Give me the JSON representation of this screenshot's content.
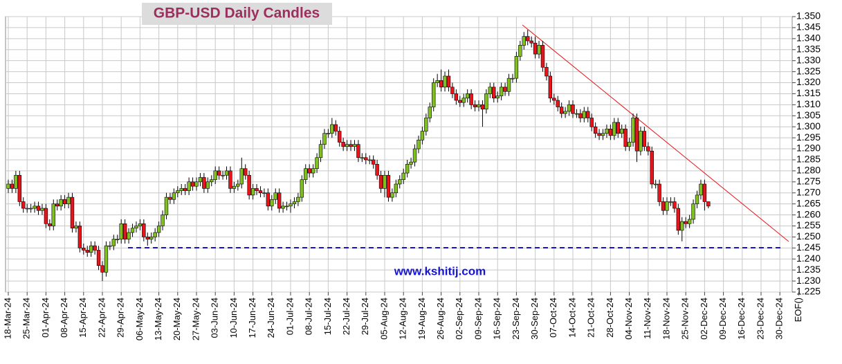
{
  "chart_data": {
    "type": "candlestick",
    "title": "GBP-USD Daily Candles",
    "watermark": "www.kshitij.com",
    "up_color": "#7fbf1f",
    "down_color": "#e8141b",
    "grid": true,
    "ylim": [
      1.225,
      1.35
    ],
    "yticks": [
      {
        "value": 1.35,
        "label": "1.350"
      },
      1.345,
      {
        "value": 1.34,
        "label": "1.340"
      },
      1.335,
      {
        "value": 1.33,
        "label": "1.330"
      },
      1.325,
      {
        "value": 1.32,
        "label": "1.320"
      },
      1.315,
      {
        "value": 1.31,
        "label": "1.310"
      },
      1.305,
      {
        "value": 1.3,
        "label": "1.300"
      },
      1.295,
      {
        "value": 1.29,
        "label": "1.290"
      },
      1.285,
      {
        "value": 1.28,
        "label": "1.280"
      },
      1.275,
      {
        "value": 1.27,
        "label": "1.270"
      },
      1.265,
      {
        "value": 1.26,
        "label": "1.260"
      },
      1.255,
      {
        "value": 1.25,
        "label": "1.250"
      },
      1.245,
      {
        "value": 1.24,
        "label": "1.240"
      },
      1.235,
      {
        "value": 1.23,
        "label": "1.230"
      },
      1.225
    ],
    "x_labels": [
      "18-Mar-24",
      "25-Mar-24",
      "01-Apr-24",
      "08-Apr-24",
      "15-Apr-24",
      "22-Apr-24",
      "29-Apr-24",
      "06-May-24",
      "13-May-24",
      "20-May-24",
      "27-May-24",
      "03-Jun-24",
      "10-Jun-24",
      "17-Jun-24",
      "24-Jun-24",
      "01-Jul-24",
      "08-Jul-24",
      "15-Jul-24",
      "22-Jul-24",
      "29-Jul-24",
      "05-Aug-24",
      "12-Aug-24",
      "19-Aug-24",
      "26-Aug-24",
      "02-Sep-24",
      "09-Sep-24",
      "16-Sep-24",
      "23-Sep-24",
      "30-Sep-24",
      "07-Oct-24",
      "14-Oct-24",
      "21-Oct-24",
      "28-Oct-24",
      "04-Nov-24",
      "11-Nov-24",
      "18-Nov-24",
      "25-Nov-24",
      "02-Dec-24",
      "09-Dec-24",
      "16-Dec-24",
      "23-Dec-24",
      "30-Dec-24",
      "EOF()"
    ],
    "open": [
      1.272,
      1.274,
      1.272,
      1.278,
      1.266,
      1.263,
      1.263,
      1.263,
      1.264,
      1.262,
      1.263,
      1.256,
      1.255,
      1.265,
      1.264,
      1.267,
      1.265,
      1.268,
      1.254,
      1.255,
      1.245,
      1.244,
      1.243,
      1.246,
      1.244,
      1.237,
      1.234,
      1.246,
      1.246,
      1.249,
      1.249,
      1.256,
      1.249,
      1.252,
      1.254,
      1.255,
      1.256,
      1.25,
      1.249,
      1.25,
      1.252,
      1.255,
      1.26,
      1.268,
      1.267,
      1.27,
      1.271,
      1.272,
      1.271,
      1.275,
      1.273,
      1.275,
      1.277,
      1.272,
      1.275,
      1.276,
      1.28,
      1.278,
      1.278,
      1.28,
      1.272,
      1.273,
      1.274,
      1.281,
      1.278,
      1.269,
      1.272,
      1.271,
      1.27,
      1.27,
      1.264,
      1.267,
      1.27,
      1.263,
      1.264,
      1.264,
      1.265,
      1.266,
      1.268,
      1.276,
      1.281,
      1.279,
      1.281,
      1.286,
      1.292,
      1.297,
      1.297,
      1.301,
      1.298,
      1.293,
      1.291,
      1.292,
      1.291,
      1.292,
      1.286,
      1.286,
      1.285,
      1.285,
      1.283,
      1.278,
      1.272,
      1.278,
      1.268,
      1.27,
      1.274,
      1.276,
      1.279,
      1.283,
      1.284,
      1.29,
      1.294,
      1.298,
      1.304,
      1.309,
      1.32,
      1.321,
      1.318,
      1.323,
      1.318,
      1.315,
      1.312,
      1.311,
      1.313,
      1.315,
      1.31,
      1.309,
      1.31,
      1.308,
      1.315,
      1.318,
      1.313,
      1.314,
      1.318,
      1.316,
      1.322,
      1.322,
      1.332,
      1.337,
      1.341,
      1.339,
      1.338,
      1.333,
      1.337,
      1.327,
      1.323,
      1.313,
      1.312,
      1.309,
      1.306,
      1.307,
      1.31,
      1.306,
      1.306,
      1.304,
      1.307,
      1.304,
      1.3,
      1.297,
      1.296,
      1.297,
      1.299,
      1.296,
      1.302,
      1.297,
      1.299,
      1.291,
      1.293,
      1.304,
      1.289,
      1.298,
      1.291,
      1.289,
      1.274,
      1.274,
      1.266,
      1.262,
      1.266,
      1.266,
      1.263,
      1.253,
      1.257,
      1.256,
      1.258,
      1.265,
      1.269,
      1.274,
      1.266
    ],
    "high": [
      1.276,
      1.276,
      1.28,
      1.28,
      1.268,
      1.265,
      1.265,
      1.266,
      1.266,
      1.265,
      1.265,
      1.258,
      1.267,
      1.267,
      1.269,
      1.269,
      1.27,
      1.27,
      1.257,
      1.257,
      1.247,
      1.246,
      1.248,
      1.248,
      1.246,
      1.239,
      1.248,
      1.248,
      1.251,
      1.251,
      1.258,
      1.258,
      1.254,
      1.256,
      1.257,
      1.258,
      1.258,
      1.252,
      1.252,
      1.254,
      1.257,
      1.262,
      1.27,
      1.27,
      1.272,
      1.273,
      1.274,
      1.274,
      1.277,
      1.277,
      1.277,
      1.279,
      1.279,
      1.277,
      1.278,
      1.282,
      1.282,
      1.28,
      1.282,
      1.282,
      1.275,
      1.276,
      1.286,
      1.283,
      1.28,
      1.274,
      1.274,
      1.273,
      1.272,
      1.272,
      1.269,
      1.272,
      1.272,
      1.266,
      1.266,
      1.267,
      1.268,
      1.27,
      1.278,
      1.283,
      1.283,
      1.283,
      1.288,
      1.294,
      1.299,
      1.299,
      1.304,
      1.303,
      1.3,
      1.295,
      1.294,
      1.294,
      1.294,
      1.294,
      1.288,
      1.288,
      1.287,
      1.287,
      1.285,
      1.28,
      1.28,
      1.28,
      1.272,
      1.276,
      1.278,
      1.281,
      1.285,
      1.286,
      1.292,
      1.296,
      1.3,
      1.306,
      1.311,
      1.322,
      1.324,
      1.326,
      1.325,
      1.326,
      1.32,
      1.317,
      1.314,
      1.315,
      1.317,
      1.317,
      1.312,
      1.312,
      1.312,
      1.317,
      1.32,
      1.32,
      1.316,
      1.32,
      1.32,
      1.324,
      1.324,
      1.334,
      1.339,
      1.343,
      1.344,
      1.341,
      1.341,
      1.339,
      1.339,
      1.329,
      1.325,
      1.315,
      1.314,
      1.311,
      1.309,
      1.312,
      1.312,
      1.308,
      1.308,
      1.309,
      1.309,
      1.306,
      1.302,
      1.299,
      1.299,
      1.301,
      1.301,
      1.304,
      1.304,
      1.301,
      1.301,
      1.295,
      1.306,
      1.306,
      1.3,
      1.3,
      1.293,
      1.291,
      1.276,
      1.276,
      1.268,
      1.268,
      1.268,
      1.268,
      1.265,
      1.259,
      1.259,
      1.26,
      1.267,
      1.271,
      1.276,
      1.276,
      1.266
    ],
    "low": [
      1.27,
      1.27,
      1.27,
      1.264,
      1.261,
      1.261,
      1.261,
      1.261,
      1.26,
      1.26,
      1.254,
      1.253,
      1.253,
      1.262,
      1.262,
      1.263,
      1.263,
      1.252,
      1.252,
      1.243,
      1.242,
      1.241,
      1.241,
      1.242,
      1.235,
      1.23,
      1.232,
      1.244,
      1.244,
      1.247,
      1.247,
      1.247,
      1.247,
      1.25,
      1.252,
      1.253,
      1.248,
      1.246,
      1.247,
      1.248,
      1.25,
      1.253,
      1.258,
      1.265,
      1.265,
      1.268,
      1.269,
      1.269,
      1.269,
      1.271,
      1.271,
      1.273,
      1.27,
      1.27,
      1.273,
      1.274,
      1.276,
      1.276,
      1.276,
      1.27,
      1.27,
      1.271,
      1.272,
      1.276,
      1.267,
      1.267,
      1.269,
      1.268,
      1.268,
      1.262,
      1.262,
      1.265,
      1.261,
      1.261,
      1.262,
      1.261,
      1.263,
      1.264,
      1.266,
      1.274,
      1.277,
      1.277,
      1.279,
      1.284,
      1.29,
      1.295,
      1.295,
      1.296,
      1.291,
      1.289,
      1.289,
      1.289,
      1.289,
      1.284,
      1.284,
      1.283,
      1.283,
      1.281,
      1.276,
      1.27,
      1.268,
      1.266,
      1.266,
      1.268,
      1.272,
      1.274,
      1.277,
      1.281,
      1.282,
      1.288,
      1.292,
      1.296,
      1.302,
      1.307,
      1.318,
      1.316,
      1.316,
      1.316,
      1.313,
      1.31,
      1.309,
      1.309,
      1.311,
      1.308,
      1.307,
      1.307,
      1.3,
      1.306,
      1.313,
      1.311,
      1.311,
      1.312,
      1.314,
      1.314,
      1.32,
      1.32,
      1.33,
      1.335,
      1.337,
      1.336,
      1.331,
      1.331,
      1.325,
      1.321,
      1.311,
      1.31,
      1.307,
      1.304,
      1.304,
      1.305,
      1.304,
      1.304,
      1.302,
      1.302,
      1.302,
      1.298,
      1.295,
      1.294,
      1.294,
      1.295,
      1.294,
      1.294,
      1.295,
      1.295,
      1.289,
      1.289,
      1.291,
      1.284,
      1.287,
      1.289,
      1.287,
      1.272,
      1.272,
      1.264,
      1.26,
      1.26,
      1.264,
      1.261,
      1.251,
      1.248,
      1.254,
      1.254,
      1.256,
      1.263,
      1.267,
      1.262,
      1.263
    ],
    "close": [
      1.274,
      1.272,
      1.278,
      1.266,
      1.263,
      1.263,
      1.263,
      1.264,
      1.262,
      1.263,
      1.256,
      1.255,
      1.265,
      1.264,
      1.267,
      1.265,
      1.268,
      1.254,
      1.255,
      1.245,
      1.244,
      1.243,
      1.246,
      1.244,
      1.237,
      1.234,
      1.246,
      1.246,
      1.249,
      1.249,
      1.256,
      1.249,
      1.252,
      1.254,
      1.255,
      1.256,
      1.25,
      1.249,
      1.25,
      1.252,
      1.255,
      1.26,
      1.268,
      1.267,
      1.27,
      1.271,
      1.272,
      1.271,
      1.275,
      1.273,
      1.275,
      1.277,
      1.272,
      1.275,
      1.276,
      1.28,
      1.278,
      1.278,
      1.28,
      1.272,
      1.273,
      1.274,
      1.281,
      1.278,
      1.269,
      1.272,
      1.271,
      1.27,
      1.27,
      1.264,
      1.267,
      1.27,
      1.263,
      1.264,
      1.264,
      1.265,
      1.266,
      1.268,
      1.276,
      1.281,
      1.279,
      1.281,
      1.286,
      1.292,
      1.297,
      1.297,
      1.301,
      1.298,
      1.293,
      1.291,
      1.292,
      1.291,
      1.292,
      1.286,
      1.286,
      1.285,
      1.285,
      1.283,
      1.278,
      1.272,
      1.278,
      1.268,
      1.27,
      1.274,
      1.276,
      1.279,
      1.283,
      1.284,
      1.29,
      1.294,
      1.298,
      1.304,
      1.309,
      1.32,
      1.321,
      1.318,
      1.323,
      1.318,
      1.315,
      1.312,
      1.311,
      1.313,
      1.315,
      1.31,
      1.309,
      1.31,
      1.308,
      1.315,
      1.318,
      1.313,
      1.314,
      1.318,
      1.316,
      1.322,
      1.322,
      1.332,
      1.337,
      1.341,
      1.339,
      1.338,
      1.333,
      1.337,
      1.327,
      1.323,
      1.313,
      1.312,
      1.309,
      1.306,
      1.307,
      1.31,
      1.306,
      1.306,
      1.304,
      1.307,
      1.304,
      1.3,
      1.297,
      1.296,
      1.297,
      1.299,
      1.296,
      1.302,
      1.297,
      1.299,
      1.291,
      1.293,
      1.304,
      1.289,
      1.298,
      1.291,
      1.289,
      1.274,
      1.274,
      1.266,
      1.262,
      1.266,
      1.266,
      1.263,
      1.253,
      1.257,
      1.256,
      1.258,
      1.265,
      1.269,
      1.274,
      1.266,
      1.264
    ]
  }
}
